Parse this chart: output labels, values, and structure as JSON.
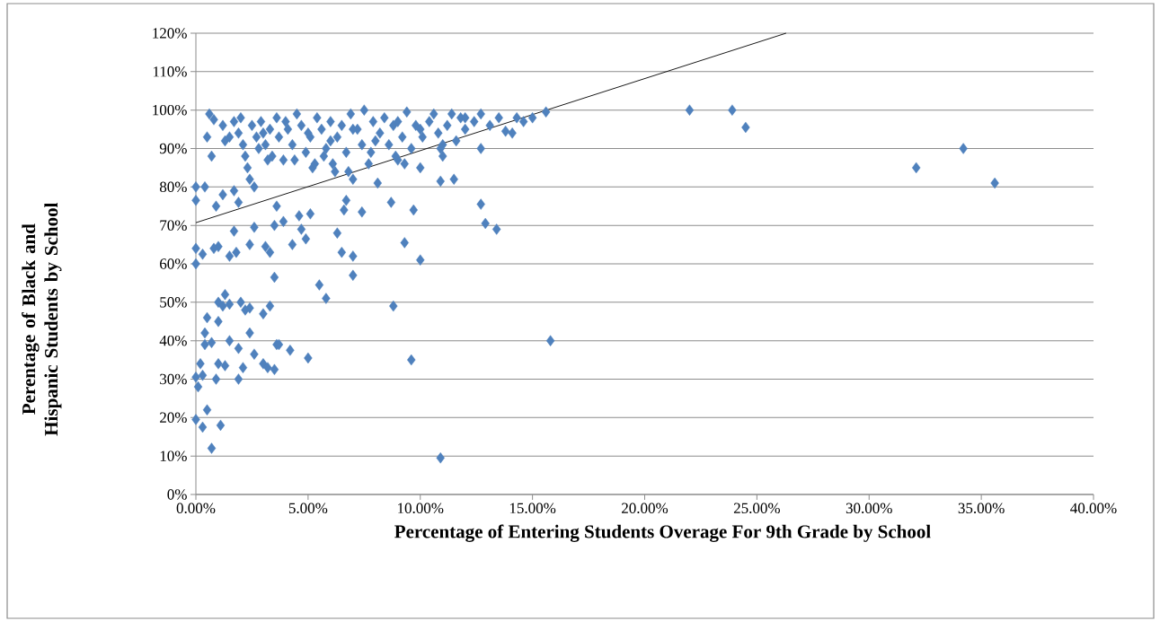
{
  "chart_data": {
    "type": "scatter",
    "xlabel": "Percentage of Entering Students Overage For 9th Grade by School",
    "ylabel": "Perentage of Black and Hispanic Students by School",
    "xlim": [
      0,
      40
    ],
    "ylim": [
      0,
      120
    ],
    "xticks": [
      {
        "value": 0,
        "label": "0.00%"
      },
      {
        "value": 5,
        "label": "5.00%"
      },
      {
        "value": 10,
        "label": "10.00%"
      },
      {
        "value": 15,
        "label": "15.00%"
      },
      {
        "value": 20,
        "label": "20.00%"
      },
      {
        "value": 25,
        "label": "25.00%"
      },
      {
        "value": 30,
        "label": "30.00%"
      },
      {
        "value": 35,
        "label": "35.00%"
      },
      {
        "value": 40,
        "label": "40.00%"
      }
    ],
    "yticks": [
      {
        "value": 0,
        "label": "0%"
      },
      {
        "value": 10,
        "label": "10%"
      },
      {
        "value": 20,
        "label": "20%"
      },
      {
        "value": 30,
        "label": "30%"
      },
      {
        "value": 40,
        "label": "40%"
      },
      {
        "value": 50,
        "label": "50%"
      },
      {
        "value": 60,
        "label": "60%"
      },
      {
        "value": 70,
        "label": "70%"
      },
      {
        "value": 80,
        "label": "80%"
      },
      {
        "value": 90,
        "label": "90%"
      },
      {
        "value": 100,
        "label": "100%"
      },
      {
        "value": 110,
        "label": "110%"
      },
      {
        "value": 120,
        "label": "120%"
      }
    ],
    "grid": "y",
    "marker": "diamond",
    "series": [
      {
        "color": "#4f81bd",
        "x": [
          22.0,
          23.9,
          24.5,
          32.1,
          34.2,
          35.6,
          15.8,
          10.9,
          15.6,
          13.4,
          12.7,
          12.9,
          12.7,
          11.5,
          10.9,
          9.7,
          10.0,
          9.3,
          8.8,
          9.6,
          8.7,
          7.4,
          7.0,
          7.0,
          6.6,
          6.7,
          6.5,
          6.3,
          5.8,
          5.5,
          5.0,
          4.9,
          5.1,
          4.6,
          4.3,
          4.7,
          3.9,
          3.6,
          3.5,
          3.5,
          3.6,
          3.5,
          4.2,
          3.3,
          3.1,
          3.3,
          3.0,
          3.0,
          3.2,
          2.6,
          2.4,
          2.4,
          2.1,
          1.9,
          1.9,
          2.0,
          2.4,
          2.6,
          1.8,
          1.7,
          1.5,
          1.2,
          1.7,
          1.9,
          2.6,
          0.9,
          0.4,
          0.0,
          0.0,
          0.0,
          0.3,
          0.0,
          1.0,
          0.8,
          1.3,
          1.0,
          1.5,
          1.5,
          1.0,
          1.0,
          1.3,
          0.7,
          0.9,
          0.5,
          0.4,
          0.4,
          0.2,
          0.0,
          0.1,
          0.3,
          0.0,
          0.3,
          0.5,
          1.1,
          0.7,
          1.2,
          2.2,
          3.7,
          0.6,
          0.8,
          0.5,
          0.7,
          1.2,
          1.3,
          1.7,
          1.9,
          2.1,
          2.2,
          2.3,
          2.4,
          2.5,
          2.7,
          2.9,
          3.1,
          3.3,
          3.4,
          3.6,
          3.7,
          3.9,
          4.1,
          4.3,
          4.5,
          4.7,
          4.9,
          5.1,
          5.2,
          5.4,
          5.6,
          5.8,
          6.0,
          6.1,
          6.3,
          6.5,
          6.7,
          6.9,
          7.0,
          7.2,
          7.4,
          7.5,
          7.7,
          7.9,
          8.1,
          8.2,
          8.4,
          8.6,
          8.8,
          9.0,
          9.2,
          9.4,
          9.6,
          9.8,
          10.0,
          10.1,
          10.4,
          10.6,
          10.8,
          11.0,
          11.2,
          11.4,
          11.6,
          11.8,
          12.0,
          12.4,
          12.7,
          13.1,
          13.5,
          13.8,
          14.1,
          14.3,
          14.6,
          15.0,
          2.0,
          3.0,
          4.0,
          5.0,
          6.0,
          7.0,
          8.0,
          9.0,
          10.0,
          11.0,
          12.0,
          1.5,
          2.8,
          4.4,
          5.7,
          6.8,
          7.8,
          8.9,
          9.3,
          10.9,
          6.2,
          5.3,
          3.2
        ],
        "values": [
          100,
          100,
          95.5,
          85,
          90,
          81,
          40,
          9.5,
          99.5,
          69,
          75.5,
          70.5,
          90,
          82,
          81.5,
          74,
          61,
          65.5,
          49,
          35,
          76,
          73.5,
          57,
          62,
          74,
          76.5,
          63,
          68,
          51,
          54.5,
          35.5,
          66.5,
          73,
          72.5,
          65,
          69,
          71,
          75,
          56.5,
          70,
          39,
          32.5,
          37.5,
          49,
          64.5,
          63,
          47,
          34,
          33,
          36.5,
          42,
          48.5,
          33,
          30,
          38,
          50,
          65,
          69.5,
          63,
          68.5,
          62,
          78,
          79,
          76,
          80,
          75,
          80,
          80,
          76.5,
          64,
          62.5,
          60,
          64.5,
          64,
          52,
          50,
          49.5,
          40,
          45,
          34,
          33.5,
          39.5,
          30,
          46,
          42,
          39,
          34,
          30.5,
          28,
          31,
          19.5,
          17.5,
          22,
          18,
          12,
          49,
          48,
          39,
          99,
          97.5,
          93,
          88,
          96,
          92,
          97,
          94,
          91,
          88,
          85,
          82,
          96,
          93,
          97,
          91,
          95,
          88,
          98,
          93,
          87,
          95,
          91,
          99,
          96,
          89,
          93,
          85,
          98,
          95,
          90,
          97,
          86,
          93,
          96,
          89,
          99,
          82,
          95,
          91,
          100,
          86,
          97,
          81,
          94,
          98,
          91,
          96,
          87,
          93,
          99.5,
          90,
          96,
          85,
          93,
          97,
          99,
          94,
          88,
          96,
          99,
          92,
          98,
          95,
          97,
          99,
          96,
          98,
          94.5,
          94,
          98,
          97,
          98,
          98,
          94,
          97,
          94,
          92,
          95,
          92,
          97,
          95,
          91,
          98,
          93,
          90,
          87,
          88,
          84,
          89,
          88,
          86,
          90,
          84,
          86,
          87
        ]
      },
      {
        "type": "line",
        "color": "#000000",
        "marker": "none",
        "x": [
          0,
          26.3
        ],
        "values": [
          70.7,
          120
        ]
      }
    ]
  }
}
